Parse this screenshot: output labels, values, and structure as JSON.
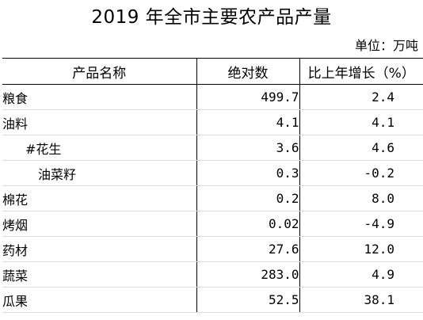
{
  "title": "2019 年全市主要农产品产量",
  "unit": "单位：万吨",
  "table": {
    "headers": [
      "产品名称",
      "绝对数",
      "比上年增长（%）"
    ],
    "rows": [
      {
        "name": "粮食",
        "abs": "499.7",
        "growth": "2.4",
        "level": 0
      },
      {
        "name": "油料",
        "abs": "4.1",
        "growth": "4.1",
        "level": 0
      },
      {
        "name": "#花生",
        "abs": "3.6",
        "growth": "4.6",
        "level": 1
      },
      {
        "name": "油菜籽",
        "abs": "0.3",
        "growth": "-0.2",
        "level": 2
      },
      {
        "name": "棉花",
        "abs": "0.2",
        "growth": "8.0",
        "level": 0
      },
      {
        "name": "烤烟",
        "abs": "0.02",
        "growth": "-4.9",
        "level": 0
      },
      {
        "name": "药材",
        "abs": "27.6",
        "growth": "12.0",
        "level": 0
      },
      {
        "name": "蔬菜",
        "abs": "283.0",
        "growth": "4.9",
        "level": 0
      },
      {
        "name": "瓜果",
        "abs": "52.5",
        "growth": "38.1",
        "level": 0
      }
    ]
  }
}
